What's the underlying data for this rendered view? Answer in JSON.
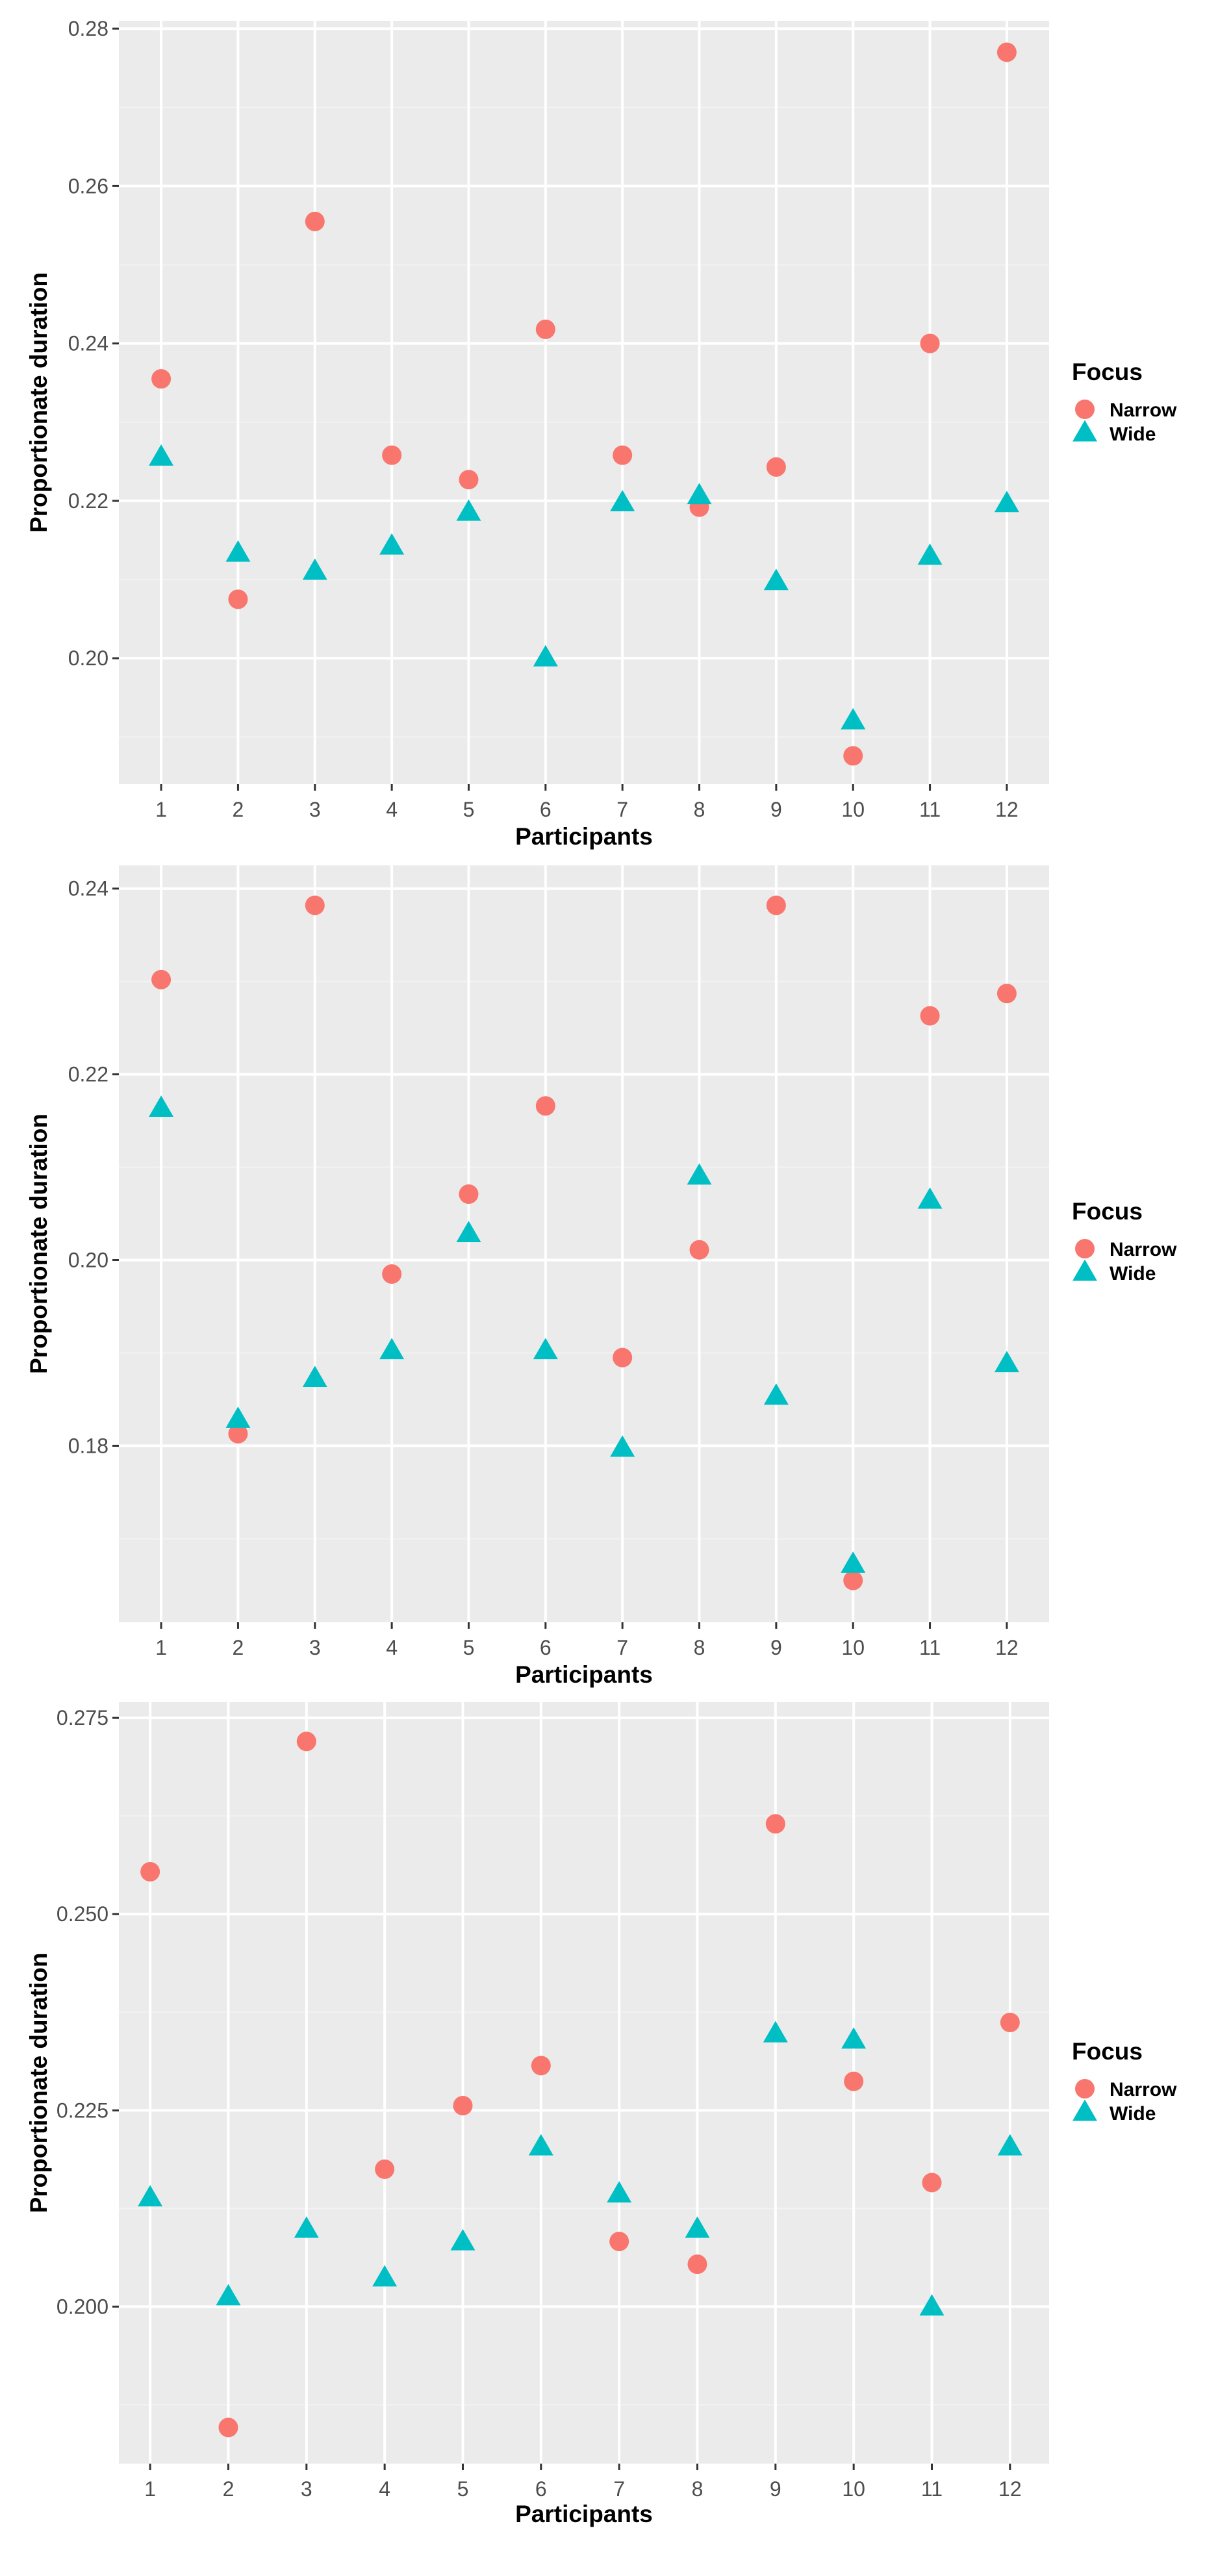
{
  "colors": {
    "narrow": "#F8766D",
    "wide": "#00BFC4",
    "panel_bg": "#EBEBEB",
    "grid_major": "#FFFFFF",
    "grid_minor": "#F2F2F2",
    "tick": "#333333",
    "tick_text": "#4D4D4D"
  },
  "chart_data": [
    {
      "type": "scatter",
      "xlabel": "Participants",
      "ylabel": "Proportionate duration",
      "x": [
        1,
        2,
        3,
        4,
        5,
        6,
        7,
        8,
        9,
        10,
        11,
        12
      ],
      "xlim": [
        0.45,
        12.55
      ],
      "ylim": [
        0.184,
        0.281
      ],
      "yticks": [
        0.2,
        0.22,
        0.24,
        0.26,
        0.28
      ],
      "ytick_labels": [
        "0.20",
        "0.22",
        "0.24",
        "0.26",
        "0.28"
      ],
      "legend": {
        "title": "Focus",
        "position": "right"
      },
      "series": [
        {
          "name": "Narrow",
          "shape": "circle",
          "values": [
            0.2355,
            0.2075,
            0.2555,
            0.2258,
            0.2227,
            0.2418,
            0.2258,
            0.2192,
            0.2243,
            0.1876,
            0.24,
            0.277
          ]
        },
        {
          "name": "Wide",
          "shape": "triangle",
          "values": [
            0.2255,
            0.2133,
            0.211,
            0.2142,
            0.2185,
            0.2,
            0.2197,
            0.2206,
            0.2097,
            0.192,
            0.2129,
            0.2196
          ]
        }
      ]
    },
    {
      "type": "scatter",
      "xlabel": "Participants",
      "ylabel": "Proportionate duration",
      "x": [
        1,
        2,
        3,
        4,
        5,
        6,
        7,
        8,
        9,
        10,
        11,
        12
      ],
      "xlim": [
        0.45,
        12.55
      ],
      "ylim": [
        0.161,
        0.2425
      ],
      "yticks": [
        0.18,
        0.2,
        0.22,
        0.24
      ],
      "ytick_labels": [
        "0.18",
        "0.20",
        "0.22",
        "0.24"
      ],
      "legend": {
        "title": "Focus",
        "position": "right"
      },
      "series": [
        {
          "name": "Narrow",
          "shape": "circle",
          "values": [
            0.2302,
            0.1813,
            0.2382,
            0.1985,
            0.2071,
            0.2166,
            0.1895,
            0.2011,
            0.2382,
            0.1655,
            0.2263,
            0.2287
          ]
        },
        {
          "name": "Wide",
          "shape": "triangle",
          "values": [
            0.2163,
            0.1828,
            0.1872,
            0.1902,
            0.2028,
            0.1902,
            0.1797,
            0.209,
            0.1853,
            0.1672,
            0.2064,
            0.1888
          ]
        }
      ]
    },
    {
      "type": "scatter",
      "xlabel": "Participants",
      "ylabel": "Proportionate duration",
      "x": [
        1,
        2,
        3,
        4,
        5,
        6,
        7,
        8,
        9,
        10,
        11,
        12
      ],
      "xlim": [
        0.6,
        12.5
      ],
      "ylim": [
        0.18,
        0.277
      ],
      "yticks": [
        0.2,
        0.225,
        0.25,
        0.275
      ],
      "ytick_labels": [
        "0.200",
        "0.225",
        "0.250",
        "0.275"
      ],
      "legend": {
        "title": "Focus",
        "position": "right"
      },
      "series": [
        {
          "name": "Narrow",
          "shape": "circle",
          "values": [
            0.2554,
            0.1846,
            0.272,
            0.2175,
            0.2256,
            0.2307,
            0.2083,
            0.2054,
            0.2615,
            0.2287,
            0.2158,
            0.2362
          ]
        },
        {
          "name": "Wide",
          "shape": "triangle",
          "values": [
            0.2138,
            0.2012,
            0.2098,
            0.2036,
            0.2082,
            0.2203,
            0.2143,
            0.2098,
            0.2347,
            0.2339,
            0.1999,
            0.2203
          ]
        }
      ]
    }
  ]
}
